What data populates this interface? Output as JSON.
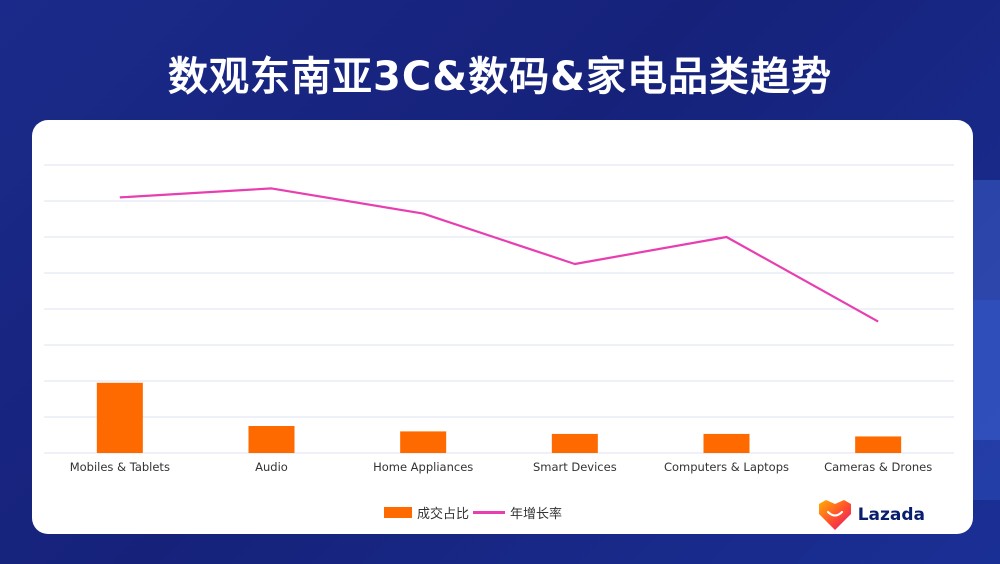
{
  "title": "数观东南亚3C&数码&家电品类趋势",
  "brand": {
    "name": "Lazada"
  },
  "colors": {
    "bar": "#ff6a00",
    "line": "#e83fb0",
    "grid": "#dde3f2"
  },
  "chart_data": {
    "type": "bar+line",
    "categories": [
      "Mobiles & Tablets",
      "Audio",
      "Home Appliances",
      "Smart Devices",
      "Computers & Laptops",
      "Cameras & Drones"
    ],
    "series": [
      {
        "name": "成交占比",
        "type": "bar",
        "values": [
          19.5,
          7.5,
          6.0,
          5.3,
          5.3,
          4.6
        ]
      },
      {
        "name": "年增长率",
        "type": "line",
        "values": [
          71,
          73.5,
          66.5,
          52.5,
          60,
          36.5
        ]
      }
    ],
    "ylim": [
      0,
      80
    ],
    "grid": true,
    "legend_position": "bottom-center",
    "title": "",
    "xlabel": "",
    "ylabel": ""
  }
}
